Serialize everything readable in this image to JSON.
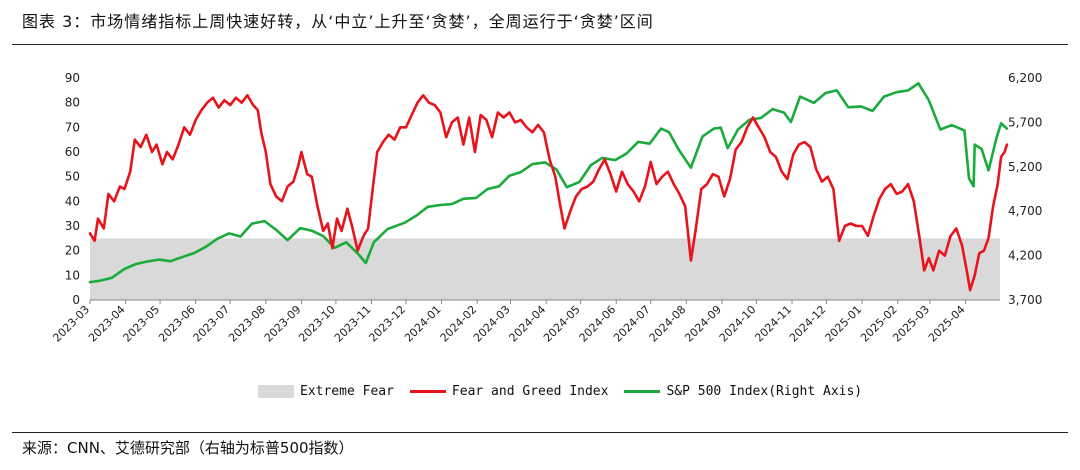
{
  "title": "图表 3：市场情绪指标上周快速好转，从‘中立’上升至‘贪婪’，全周运行于‘贪婪’区间",
  "source": "来源：CNN、艾德研究部（右轴为标普500指数）",
  "colors": {
    "fear_greed": "#e8141c",
    "sp500": "#1aab3c",
    "extreme_fear": "#d9d9d9"
  },
  "chart_data": {
    "type": "line",
    "title": "",
    "x_categories": [
      "2023-03",
      "2023-04",
      "2023-05",
      "2023-06",
      "2023-07",
      "2023-08",
      "2023-09",
      "2023-10",
      "2023-11",
      "2023-12",
      "2024-01",
      "2024-02",
      "2024-03",
      "2024-04",
      "2024-05",
      "2024-06",
      "2024-07",
      "2024-08",
      "2024-09",
      "2024-10",
      "2024-11",
      "2024-12",
      "2025-01",
      "2025-02",
      "2025-03",
      "2025-04"
    ],
    "y_left": {
      "min": 0,
      "max": 90,
      "ticks": [
        0,
        10,
        20,
        30,
        40,
        50,
        60,
        70,
        80,
        90
      ]
    },
    "y_right": {
      "min": 3700,
      "max": 6200,
      "ticks": [
        3700,
        4200,
        4700,
        5200,
        5700,
        6200
      ],
      "tick_labels": [
        "3,700",
        "4,200",
        "4,700",
        "5,200",
        "5,700",
        "6,200"
      ]
    },
    "bands": [
      {
        "name": "Extreme Fear",
        "from": 0,
        "to": 25
      }
    ],
    "legend": [
      "Extreme Fear",
      "Fear and Greed Index",
      "S&P 500 Index(Right Axis)"
    ],
    "legend_position": "bottom",
    "grid": false,
    "series": [
      {
        "name": "Fear and Greed Index",
        "axis": "left",
        "points": [
          [
            "2023-03-01",
            27
          ],
          [
            "2023-03-05",
            24
          ],
          [
            "2023-03-08",
            33
          ],
          [
            "2023-03-13",
            29
          ],
          [
            "2023-03-17",
            43
          ],
          [
            "2023-03-22",
            40
          ],
          [
            "2023-03-27",
            46
          ],
          [
            "2023-03-31",
            45
          ],
          [
            "2023-04-05",
            52
          ],
          [
            "2023-04-09",
            65
          ],
          [
            "2023-04-14",
            62
          ],
          [
            "2023-04-19",
            67
          ],
          [
            "2023-04-24",
            60
          ],
          [
            "2023-04-28",
            63
          ],
          [
            "2023-05-03",
            55
          ],
          [
            "2023-05-07",
            60
          ],
          [
            "2023-05-12",
            57
          ],
          [
            "2023-05-17",
            63
          ],
          [
            "2023-05-22",
            70
          ],
          [
            "2023-05-27",
            67
          ],
          [
            "2023-06-01",
            73
          ],
          [
            "2023-06-06",
            77
          ],
          [
            "2023-06-11",
            80
          ],
          [
            "2023-06-16",
            82
          ],
          [
            "2023-06-21",
            78
          ],
          [
            "2023-06-26",
            81
          ],
          [
            "2023-07-01",
            79
          ],
          [
            "2023-07-06",
            82
          ],
          [
            "2023-07-11",
            80
          ],
          [
            "2023-07-16",
            83
          ],
          [
            "2023-07-21",
            79
          ],
          [
            "2023-07-25",
            77
          ],
          [
            "2023-07-28",
            68
          ],
          [
            "2023-08-01",
            60
          ],
          [
            "2023-08-05",
            47
          ],
          [
            "2023-08-10",
            42
          ],
          [
            "2023-08-15",
            40
          ],
          [
            "2023-08-20",
            46
          ],
          [
            "2023-08-25",
            48
          ],
          [
            "2023-08-29",
            54
          ],
          [
            "2023-09-01",
            60
          ],
          [
            "2023-09-06",
            51
          ],
          [
            "2023-09-10",
            50
          ],
          [
            "2023-09-15",
            38
          ],
          [
            "2023-09-20",
            28
          ],
          [
            "2023-09-24",
            31
          ],
          [
            "2023-09-28",
            21
          ],
          [
            "2023-10-02",
            33
          ],
          [
            "2023-10-06",
            28
          ],
          [
            "2023-10-11",
            37
          ],
          [
            "2023-10-15",
            30
          ],
          [
            "2023-10-20",
            20
          ],
          [
            "2023-10-25",
            26
          ],
          [
            "2023-10-29",
            29
          ],
          [
            "2023-11-02",
            45
          ],
          [
            "2023-11-06",
            60
          ],
          [
            "2023-11-11",
            64
          ],
          [
            "2023-11-16",
            67
          ],
          [
            "2023-11-21",
            65
          ],
          [
            "2023-11-26",
            70
          ],
          [
            "2023-12-01",
            70
          ],
          [
            "2023-12-06",
            75
          ],
          [
            "2023-12-11",
            80
          ],
          [
            "2023-12-16",
            83
          ],
          [
            "2023-12-21",
            80
          ],
          [
            "2023-12-26",
            79
          ],
          [
            "2023-12-31",
            76
          ],
          [
            "2024-01-05",
            66
          ],
          [
            "2024-01-10",
            72
          ],
          [
            "2024-01-15",
            74
          ],
          [
            "2024-01-20",
            63
          ],
          [
            "2024-01-25",
            74
          ],
          [
            "2024-01-30",
            60
          ],
          [
            "2024-02-04",
            75
          ],
          [
            "2024-02-09",
            73
          ],
          [
            "2024-02-14",
            66
          ],
          [
            "2024-02-19",
            76
          ],
          [
            "2024-02-24",
            74
          ],
          [
            "2024-02-29",
            76
          ],
          [
            "2024-03-05",
            72
          ],
          [
            "2024-03-10",
            73
          ],
          [
            "2024-03-15",
            70
          ],
          [
            "2024-03-20",
            68
          ],
          [
            "2024-03-25",
            71
          ],
          [
            "2024-03-30",
            68
          ],
          [
            "2024-04-04",
            57
          ],
          [
            "2024-04-09",
            50
          ],
          [
            "2024-04-13",
            39
          ],
          [
            "2024-04-17",
            29
          ],
          [
            "2024-04-22",
            36
          ],
          [
            "2024-04-27",
            42
          ],
          [
            "2024-05-02",
            45
          ],
          [
            "2024-05-07",
            46
          ],
          [
            "2024-05-12",
            48
          ],
          [
            "2024-05-17",
            53
          ],
          [
            "2024-05-22",
            57
          ],
          [
            "2024-05-27",
            51
          ],
          [
            "2024-06-01",
            44
          ],
          [
            "2024-06-06",
            52
          ],
          [
            "2024-06-11",
            47
          ],
          [
            "2024-06-16",
            44
          ],
          [
            "2024-06-21",
            40
          ],
          [
            "2024-06-26",
            46
          ],
          [
            "2024-07-01",
            56
          ],
          [
            "2024-07-06",
            47
          ],
          [
            "2024-07-11",
            50
          ],
          [
            "2024-07-16",
            52
          ],
          [
            "2024-07-21",
            47
          ],
          [
            "2024-07-26",
            43
          ],
          [
            "2024-07-31",
            38
          ],
          [
            "2024-08-05",
            16
          ],
          [
            "2024-08-09",
            28
          ],
          [
            "2024-08-14",
            45
          ],
          [
            "2024-08-19",
            47
          ],
          [
            "2024-08-24",
            51
          ],
          [
            "2024-08-29",
            50
          ],
          [
            "2024-09-03",
            42
          ],
          [
            "2024-09-08",
            49
          ],
          [
            "2024-09-13",
            61
          ],
          [
            "2024-09-18",
            64
          ],
          [
            "2024-09-23",
            70
          ],
          [
            "2024-09-28",
            74
          ],
          [
            "2024-10-03",
            70
          ],
          [
            "2024-10-08",
            66
          ],
          [
            "2024-10-13",
            60
          ],
          [
            "2024-10-18",
            58
          ],
          [
            "2024-10-23",
            52
          ],
          [
            "2024-10-28",
            49
          ],
          [
            "2024-11-02",
            59
          ],
          [
            "2024-11-07",
            63
          ],
          [
            "2024-11-12",
            64
          ],
          [
            "2024-11-17",
            62
          ],
          [
            "2024-11-22",
            53
          ],
          [
            "2024-11-27",
            48
          ],
          [
            "2024-12-02",
            50
          ],
          [
            "2024-12-07",
            45
          ],
          [
            "2024-12-12",
            24
          ],
          [
            "2024-12-17",
            30
          ],
          [
            "2024-12-22",
            31
          ],
          [
            "2024-12-27",
            30
          ],
          [
            "2025-01-01",
            30
          ],
          [
            "2025-01-06",
            26
          ],
          [
            "2025-01-11",
            34
          ],
          [
            "2025-01-16",
            41
          ],
          [
            "2025-01-21",
            45
          ],
          [
            "2025-01-26",
            47
          ],
          [
            "2025-01-31",
            43
          ],
          [
            "2025-02-05",
            44
          ],
          [
            "2025-02-10",
            47
          ],
          [
            "2025-02-15",
            40
          ],
          [
            "2025-02-20",
            25
          ],
          [
            "2025-02-24",
            12
          ],
          [
            "2025-02-28",
            17
          ],
          [
            "2025-03-04",
            12
          ],
          [
            "2025-03-09",
            20
          ],
          [
            "2025-03-14",
            18
          ],
          [
            "2025-03-19",
            26
          ],
          [
            "2025-03-24",
            29
          ],
          [
            "2025-03-29",
            22
          ],
          [
            "2025-04-02",
            12
          ],
          [
            "2025-04-05",
            4
          ],
          [
            "2025-04-09",
            10
          ],
          [
            "2025-04-13",
            19
          ],
          [
            "2025-04-17",
            20
          ],
          [
            "2025-04-21",
            25
          ],
          [
            "2025-04-25",
            38
          ],
          [
            "2025-04-29",
            47
          ],
          [
            "2025-05-02",
            58
          ],
          [
            "2025-05-05",
            60
          ],
          [
            "2025-05-07",
            63
          ]
        ]
      },
      {
        "name": "S&P 500 Index(Right Axis)",
        "axis": "right",
        "points": [
          [
            "2023-03-01",
            3900
          ],
          [
            "2023-03-10",
            3918
          ],
          [
            "2023-03-20",
            3950
          ],
          [
            "2023-03-31",
            4050
          ],
          [
            "2023-04-10",
            4105
          ],
          [
            "2023-04-20",
            4133
          ],
          [
            "2023-04-30",
            4155
          ],
          [
            "2023-05-10",
            4137
          ],
          [
            "2023-05-20",
            4182
          ],
          [
            "2023-05-31",
            4230
          ],
          [
            "2023-06-10",
            4300
          ],
          [
            "2023-06-20",
            4390
          ],
          [
            "2023-06-30",
            4450
          ],
          [
            "2023-07-10",
            4415
          ],
          [
            "2023-07-20",
            4560
          ],
          [
            "2023-07-31",
            4588
          ],
          [
            "2023-08-10",
            4490
          ],
          [
            "2023-08-20",
            4375
          ],
          [
            "2023-08-31",
            4510
          ],
          [
            "2023-09-10",
            4480
          ],
          [
            "2023-09-20",
            4420
          ],
          [
            "2023-09-30",
            4288
          ],
          [
            "2023-10-10",
            4350
          ],
          [
            "2023-10-20",
            4225
          ],
          [
            "2023-10-27",
            4117
          ],
          [
            "2023-11-03",
            4350
          ],
          [
            "2023-11-15",
            4500
          ],
          [
            "2023-11-30",
            4570
          ],
          [
            "2023-12-10",
            4650
          ],
          [
            "2023-12-20",
            4750
          ],
          [
            "2023-12-31",
            4770
          ],
          [
            "2024-01-10",
            4780
          ],
          [
            "2024-01-20",
            4840
          ],
          [
            "2024-01-31",
            4850
          ],
          [
            "2024-02-10",
            4950
          ],
          [
            "2024-02-20",
            4980
          ],
          [
            "2024-02-29",
            5100
          ],
          [
            "2024-03-10",
            5140
          ],
          [
            "2024-03-20",
            5230
          ],
          [
            "2024-03-31",
            5250
          ],
          [
            "2024-04-10",
            5170
          ],
          [
            "2024-04-19",
            4970
          ],
          [
            "2024-04-30",
            5030
          ],
          [
            "2024-05-10",
            5220
          ],
          [
            "2024-05-20",
            5300
          ],
          [
            "2024-05-31",
            5275
          ],
          [
            "2024-06-10",
            5350
          ],
          [
            "2024-06-20",
            5480
          ],
          [
            "2024-06-30",
            5460
          ],
          [
            "2024-07-10",
            5630
          ],
          [
            "2024-07-17",
            5590
          ],
          [
            "2024-07-25",
            5400
          ],
          [
            "2024-08-05",
            5190
          ],
          [
            "2024-08-15",
            5540
          ],
          [
            "2024-08-25",
            5630
          ],
          [
            "2024-08-31",
            5640
          ],
          [
            "2024-09-06",
            5410
          ],
          [
            "2024-09-15",
            5620
          ],
          [
            "2024-09-25",
            5730
          ],
          [
            "2024-10-05",
            5750
          ],
          [
            "2024-10-15",
            5850
          ],
          [
            "2024-10-25",
            5810
          ],
          [
            "2024-10-31",
            5705
          ],
          [
            "2024-11-08",
            5990
          ],
          [
            "2024-11-20",
            5920
          ],
          [
            "2024-11-30",
            6030
          ],
          [
            "2024-12-10",
            6060
          ],
          [
            "2024-12-20",
            5870
          ],
          [
            "2024-12-31",
            5880
          ],
          [
            "2025-01-10",
            5830
          ],
          [
            "2025-01-20",
            5990
          ],
          [
            "2025-01-31",
            6040
          ],
          [
            "2025-02-10",
            6060
          ],
          [
            "2025-02-19",
            6140
          ],
          [
            "2025-02-28",
            5950
          ],
          [
            "2025-03-10",
            5620
          ],
          [
            "2025-03-20",
            5670
          ],
          [
            "2025-03-31",
            5610
          ],
          [
            "2025-04-04",
            5070
          ],
          [
            "2025-04-08",
            4980
          ],
          [
            "2025-04-09",
            5450
          ],
          [
            "2025-04-15",
            5400
          ],
          [
            "2025-04-21",
            5160
          ],
          [
            "2025-04-28",
            5530
          ],
          [
            "2025-05-02",
            5690
          ],
          [
            "2025-05-07",
            5630
          ]
        ]
      }
    ]
  }
}
